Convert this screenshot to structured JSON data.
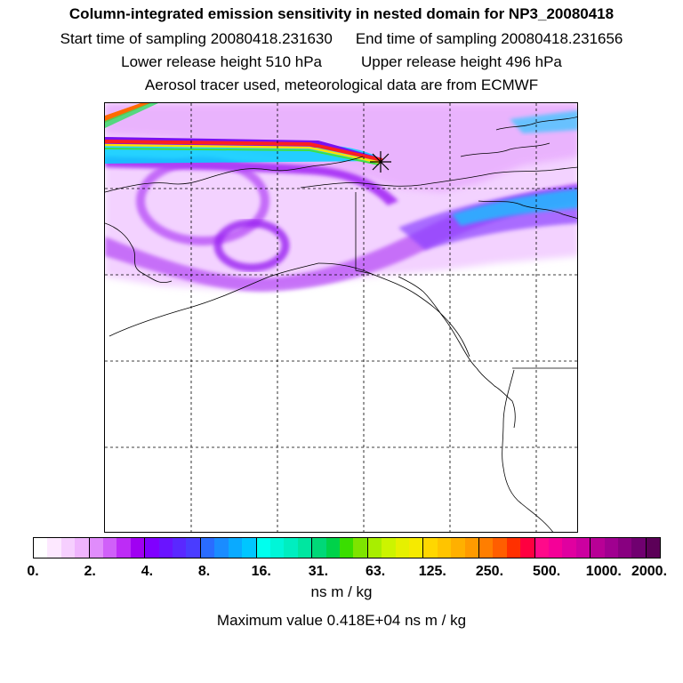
{
  "title": "Column-integrated emission sensitivity in nested domain for NP3_20080418",
  "start_sampling": "Start time of sampling 20080418.231630",
  "end_sampling": "End time of sampling 20080418.231656",
  "lower_release": "Lower release height  510 hPa",
  "upper_release": "Upper release height  496 hPa",
  "subtitle": "Aerosol tracer used, meteorological data are from ECMWF",
  "colorbar": {
    "tick_labels": [
      "0.",
      "2.",
      "4.",
      "8.",
      "16.",
      "31.",
      "63.",
      "125.",
      "250.",
      "500.",
      "1000.",
      "2000."
    ],
    "colors": [
      "#ffffff",
      "#fde8ff",
      "#f6cffe",
      "#efb4fd",
      "#e08cfb",
      "#d060f9",
      "#bd2cf6",
      "#a000f2",
      "#8000ff",
      "#6a14ff",
      "#5a28ff",
      "#4a3cff",
      "#2a6cff",
      "#1a8cff",
      "#0aaaff",
      "#00c6ff",
      "#00ffee",
      "#00f6d8",
      "#00eec0",
      "#00e6a0",
      "#00d878",
      "#00d24a",
      "#3ade00",
      "#7ee400",
      "#a8ee00",
      "#ccf400",
      "#e6f000",
      "#f6ea00",
      "#ffd700",
      "#ffc400",
      "#ffb000",
      "#ff9a00",
      "#ff7e00",
      "#ff5e00",
      "#ff3000",
      "#ff0040",
      "#ff0a8a",
      "#f50098",
      "#e000a0",
      "#cc00a0",
      "#b80096",
      "#a00090",
      "#880080",
      "#700070",
      "#5c0058"
    ],
    "major_every": 4,
    "units": "ns m / kg"
  },
  "max_value": "Maximum value  0.418E+04 ns m / kg",
  "map": {
    "type": "column-integrated emission sensitivity footprint",
    "background": "#ffffff",
    "gridline_style": "dashed black",
    "receptor_marker": "asterisk",
    "plume_colors": {
      "low": "#f3d0ff",
      "mid": "#c040f8",
      "high": "#8a00ff",
      "peak": "#00b4ff"
    }
  }
}
